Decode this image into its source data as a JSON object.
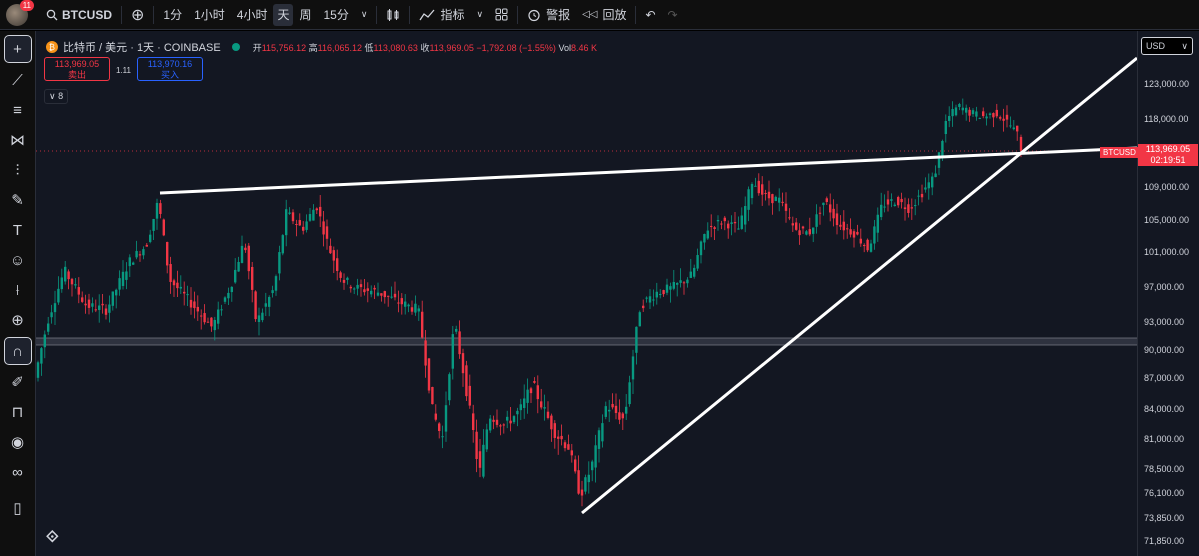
{
  "topbar": {
    "notification_count": "11",
    "symbol": "BTCUSD",
    "intervals": [
      "1分",
      "1小时",
      "4小时",
      "天",
      "周",
      "15分"
    ],
    "active_interval": "天",
    "indicators_label": "指标",
    "alert_label": "警报",
    "replay_label": "回放"
  },
  "legend": {
    "name": "比特币 / 美元 · 1天 · COINBASE",
    "btc_icon": "₿",
    "open_label": "开",
    "open": "115,756.12",
    "high_label": "高",
    "high": "116,065.12",
    "low_label": "低",
    "low": "113,080.63",
    "close_label": "收",
    "close": "113,969.05",
    "change": "−1,792.08 (−1.55%)",
    "vol_label": "Vol",
    "vol": "8.46 K"
  },
  "trade": {
    "sell_price": "113,969.05",
    "sell_label": "卖出",
    "spread": "1.11",
    "buy_price": "113,970.16",
    "buy_label": "买入",
    "collapse_count": "8"
  },
  "axis": {
    "currency": "USD",
    "ticks": [
      {
        "price": 123000,
        "label": "123,000.00"
      },
      {
        "price": 118000,
        "label": "118,000.00"
      },
      {
        "price": 109000,
        "label": "109,000.00"
      },
      {
        "price": 105000,
        "label": "105,000.00"
      },
      {
        "price": 101000,
        "label": "101,000.00"
      },
      {
        "price": 97000,
        "label": "97,000.00"
      },
      {
        "price": 93000,
        "label": "93,000.00"
      },
      {
        "price": 90000,
        "label": "90,000.00"
      },
      {
        "price": 87000,
        "label": "87,000.00"
      },
      {
        "price": 84000,
        "label": "84,000.00"
      },
      {
        "price": 81000,
        "label": "81,000.00"
      },
      {
        "price": 78500,
        "label": "78,500.00"
      },
      {
        "price": 76100,
        "label": "76,100.00"
      },
      {
        "price": 73850,
        "label": "73,850.00"
      },
      {
        "price": 71850,
        "label": "71,850.00"
      }
    ],
    "last_symbol": "BTCUSD",
    "last_price": "113,969.05",
    "countdown": "02:19:51"
  },
  "colors": {
    "up": "#089981",
    "down": "#f23645",
    "bg": "#131722",
    "line": "#ffffff"
  },
  "icons": [
    "crosshair-icon",
    "trendline-icon",
    "fib-icon",
    "pattern-icon",
    "projection-icon",
    "brush-icon",
    "text-icon",
    "emoji-icon",
    "ruler-icon",
    "zoom-icon",
    "magnet-icon",
    "lock-drawing-icon",
    "lock-icon",
    "eye-icon",
    "link-icon",
    "trash-icon"
  ]
}
